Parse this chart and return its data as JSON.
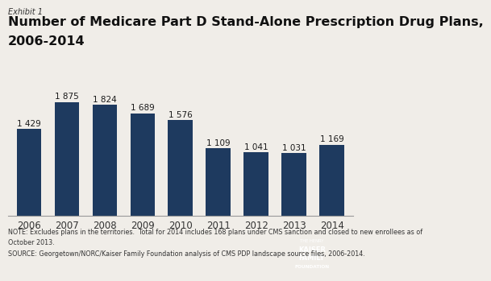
{
  "years": [
    "2006",
    "2007",
    "2008",
    "2009",
    "2010",
    "2011",
    "2012",
    "2013",
    "2014"
  ],
  "values": [
    1429,
    1875,
    1824,
    1689,
    1576,
    1109,
    1041,
    1031,
    1169
  ],
  "bar_color": "#1e3a5f",
  "background_color": "#f0ede8",
  "exhibit_label": "Exhibit 1",
  "title_line1": "Number of Medicare Part D Stand-Alone Prescription Drug Plans,",
  "title_line2": "2006-2014",
  "note_line1": "NOTE: Excludes plans in the territories.  Total for 2014 includes 168 plans under CMS sanction and closed to new enrollees as of",
  "note_line2": "October 2013.",
  "source_line": "SOURCE: Georgetown/NORC/Kaiser Family Foundation analysis of CMS PDP landscape source files, 2006-2014.",
  "value_labels": [
    "1 429",
    "1 875",
    "1 824",
    "1 689",
    "1 576",
    "1 109",
    "1 041",
    "1 031",
    "1 169"
  ],
  "ylim": [
    0,
    2150
  ],
  "bar_width": 0.65,
  "title_fontsize": 11.5,
  "exhibit_fontsize": 7,
  "label_fontsize": 7.5,
  "axis_fontsize": 8.5,
  "note_fontsize": 5.8,
  "logo_text1": "THE HENRY",
  "logo_text2": "KAISER",
  "logo_text3": "FAMILY",
  "logo_text4": "FOUNDATION",
  "logo_color": "#1e3a5f"
}
